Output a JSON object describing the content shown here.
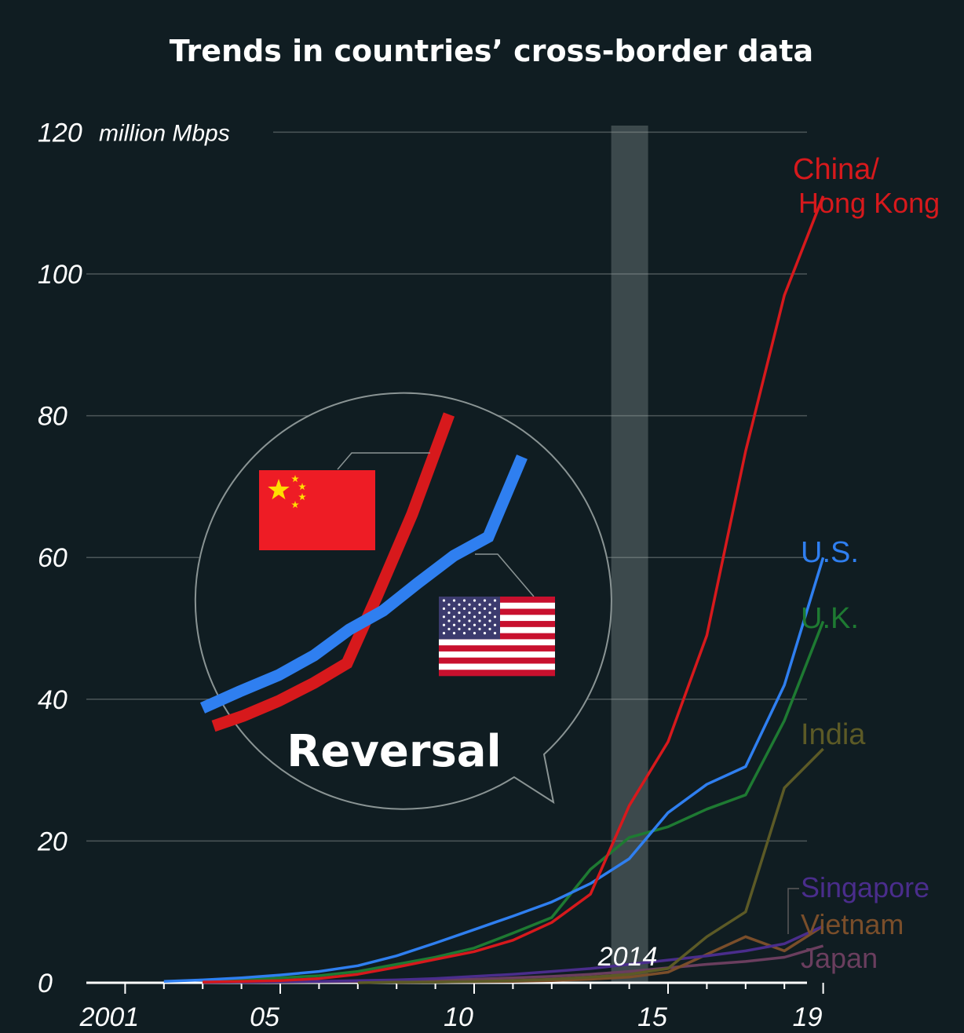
{
  "chart_data": {
    "type": "line",
    "title": "Trends in countries’ cross-border data",
    "ylabel": "million Mbps",
    "xlabel": "",
    "ylim": [
      0,
      120
    ],
    "xlim": [
      2000,
      2019.5
    ],
    "y_ticks": [
      {
        "value": 0,
        "label": "0"
      },
      {
        "value": 20,
        "label": "20"
      },
      {
        "value": 40,
        "label": "40"
      },
      {
        "value": 60,
        "label": "60"
      },
      {
        "value": 80,
        "label": "80"
      },
      {
        "value": 100,
        "label": "100"
      },
      {
        "value": 120,
        "label": "120"
      }
    ],
    "x_ticks": [
      {
        "value": 2001,
        "label": "2001"
      },
      {
        "value": 2005,
        "label": "05"
      },
      {
        "value": 2010,
        "label": "10"
      },
      {
        "value": 2015,
        "label": "15"
      },
      {
        "value": 2019,
        "label": "19"
      }
    ],
    "highlight": {
      "year": 2014,
      "label": "2014"
    },
    "annotation": {
      "text": "Reversal"
    },
    "series": [
      {
        "name": "China/ Hong Kong",
        "label_line1": "China/",
        "label_line2": "Hong Kong",
        "color": "#d7191c",
        "x": [
          2003,
          2004,
          2005,
          2006,
          2007,
          2008,
          2009,
          2010,
          2011,
          2012,
          2013,
          2014,
          2015,
          2016,
          2017,
          2018,
          2019
        ],
        "values": [
          0.1,
          0.2,
          0.3,
          0.6,
          1.2,
          2.2,
          3.3,
          4.4,
          6.0,
          8.5,
          12.5,
          25,
          34,
          49,
          75,
          97,
          111
        ]
      },
      {
        "name": "U.S.",
        "color": "#2f7ff0",
        "x": [
          2002,
          2003,
          2004,
          2005,
          2006,
          2007,
          2008,
          2009,
          2010,
          2011,
          2012,
          2013,
          2014,
          2015,
          2016,
          2017,
          2018,
          2019
        ],
        "values": [
          0.2,
          0.4,
          0.7,
          1.1,
          1.6,
          2.4,
          3.8,
          5.6,
          7.5,
          9.4,
          11.4,
          14.0,
          17.5,
          24,
          28,
          30.5,
          42,
          60
        ]
      },
      {
        "name": "U.K.",
        "color": "#1e7a32",
        "x": [
          2003,
          2004,
          2005,
          2006,
          2007,
          2008,
          2009,
          2010,
          2011,
          2012,
          2013,
          2014,
          2015,
          2016,
          2017,
          2018,
          2019
        ],
        "values": [
          0.2,
          0.4,
          0.7,
          1.0,
          1.6,
          2.6,
          3.6,
          4.9,
          7.0,
          9.2,
          16.0,
          20.5,
          22.0,
          24.5,
          26.5,
          37,
          51
        ]
      },
      {
        "name": "India",
        "color": "#5c5a26",
        "x": [
          2007,
          2008,
          2009,
          2010,
          2011,
          2012,
          2013,
          2014,
          2015,
          2016,
          2017,
          2018,
          2019
        ],
        "values": [
          0,
          0.1,
          0.1,
          0.2,
          0.3,
          0.5,
          0.8,
          1.2,
          2.0,
          6.5,
          10,
          27.5,
          33
        ]
      },
      {
        "name": "Singapore",
        "color": "#4a2d8c",
        "x": [
          2003,
          2004,
          2005,
          2006,
          2007,
          2008,
          2009,
          2010,
          2011,
          2012,
          2013,
          2014,
          2015,
          2016,
          2017,
          2018,
          2019
        ],
        "values": [
          0.05,
          0.1,
          0.15,
          0.2,
          0.3,
          0.4,
          0.6,
          0.9,
          1.2,
          1.6,
          2.0,
          2.6,
          3.2,
          3.8,
          4.5,
          5.5,
          8.0
        ]
      },
      {
        "name": "Vietnam",
        "color": "#7a4e2a",
        "x": [
          2008,
          2009,
          2010,
          2011,
          2012,
          2013,
          2014,
          2015,
          2016,
          2017,
          2018,
          2019
        ],
        "values": [
          0.05,
          0.1,
          0.15,
          0.2,
          0.3,
          0.5,
          0.8,
          1.5,
          4.0,
          6.5,
          4.5,
          8.0
        ]
      },
      {
        "name": "Japan",
        "color": "#6a3e5e",
        "x": [
          2004,
          2005,
          2006,
          2007,
          2008,
          2009,
          2010,
          2011,
          2012,
          2013,
          2014,
          2015,
          2016,
          2017,
          2018,
          2019
        ],
        "values": [
          0.05,
          0.1,
          0.15,
          0.2,
          0.3,
          0.4,
          0.5,
          0.7,
          0.9,
          1.2,
          1.6,
          2.1,
          2.6,
          3.0,
          3.6,
          5.2
        ]
      }
    ]
  }
}
